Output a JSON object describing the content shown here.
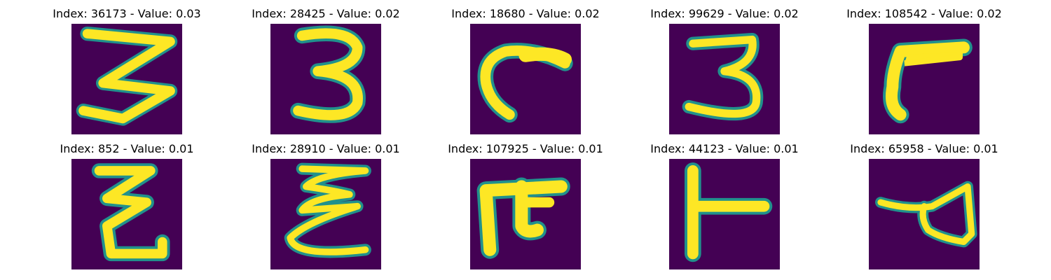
{
  "figure": {
    "colors": {
      "background": "#440154",
      "mid": "#21918c",
      "stroke": "#fde725"
    },
    "panels": [
      {
        "title": "Index: 36173 - Value: 0.03"
      },
      {
        "title": "Index: 28425 - Value: 0.02"
      },
      {
        "title": "Index: 18680 - Value: 0.02"
      },
      {
        "title": "Index: 99629 - Value: 0.02"
      },
      {
        "title": "Index: 108542 - Value: 0.02"
      },
      {
        "title": "Index: 852 - Value: 0.01"
      },
      {
        "title": "Index: 28910 - Value: 0.01"
      },
      {
        "title": "Index: 107925 - Value: 0.01"
      },
      {
        "title": "Index: 44123 - Value: 0.01"
      },
      {
        "title": "Index: 65958 - Value: 0.01"
      }
    ]
  }
}
